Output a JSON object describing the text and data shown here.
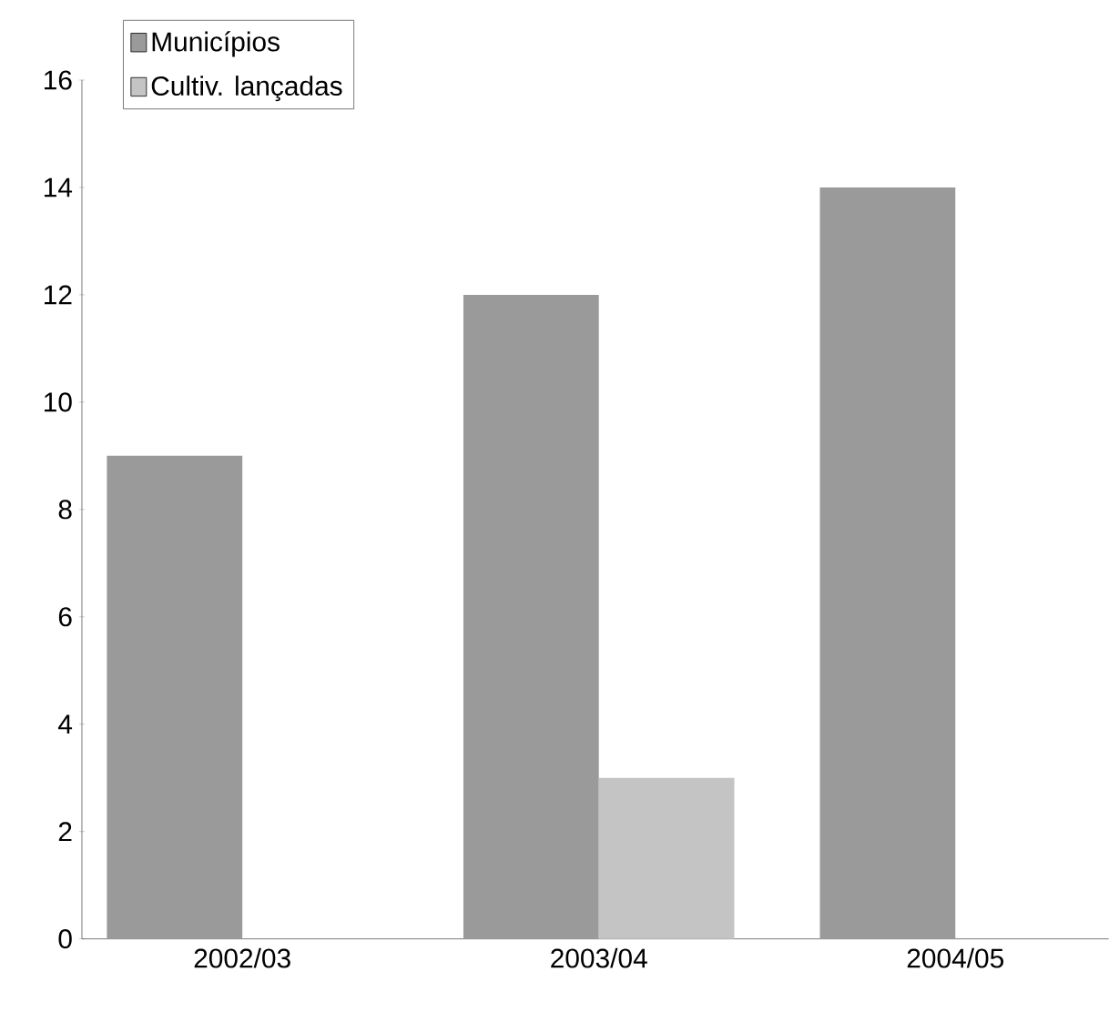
{
  "chart_data": {
    "type": "bar",
    "categories": [
      "2002/03",
      "2003/04",
      "2004/05"
    ],
    "series": [
      {
        "name": "Municípios",
        "color": "#9a9a9a",
        "values": [
          9,
          12,
          14
        ]
      },
      {
        "name": "Cultiv. lançadas",
        "color": "#c4c4c4",
        "values": [
          null,
          3,
          null
        ]
      }
    ],
    "ylim": [
      0,
      16
    ],
    "yticks": [
      0,
      2,
      4,
      6,
      8,
      10,
      12,
      14,
      16
    ],
    "legend": "top left"
  }
}
